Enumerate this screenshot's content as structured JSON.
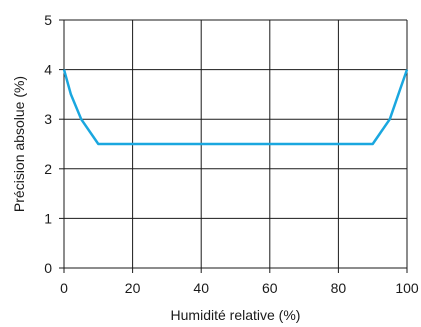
{
  "chart_data": {
    "type": "line",
    "xlabel": "Humidité relative (%)",
    "ylabel": "Précision absolue (%)",
    "xlim": [
      0,
      100
    ],
    "ylim": [
      0,
      5
    ],
    "x_ticks": [
      0,
      20,
      40,
      60,
      80,
      100
    ],
    "y_ticks": [
      0,
      1,
      2,
      3,
      4,
      5
    ],
    "grid": true,
    "line_color": "#1aa7df",
    "series": [
      {
        "x": [
          0,
          2,
          5,
          10,
          20,
          40,
          60,
          80,
          90,
          95,
          98,
          100
        ],
        "y": [
          4.0,
          3.5,
          3.0,
          2.5,
          2.5,
          2.5,
          2.5,
          2.5,
          2.5,
          3.0,
          3.6,
          4.0
        ]
      }
    ]
  }
}
